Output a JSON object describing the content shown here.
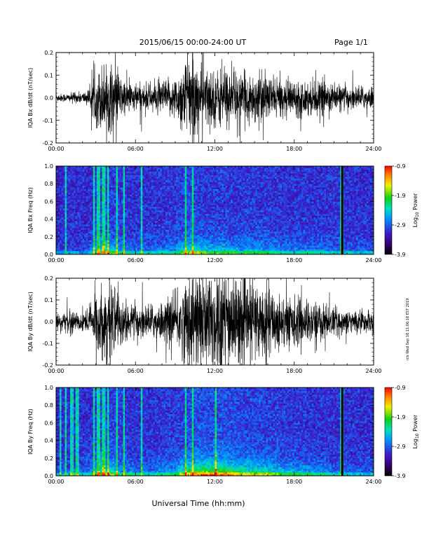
{
  "header": {
    "title": "2015/06/15  00:00-24:00 UT",
    "page": "Page 1/1"
  },
  "side_stamp": "rcb Wed Sep 18 11:06:18 EST 2019",
  "xlabel": "Universal Time (hh:mm)",
  "x_ticks": [
    "00:00",
    "06:00",
    "12:00",
    "18:00",
    "24:00"
  ],
  "colorbar": {
    "label": "Log10 Power",
    "label_main": "Log",
    "label_sub": "10",
    "label_tail": " Power",
    "ticks": [
      "-0.9",
      "-1.9",
      "-2.9",
      "-3.9"
    ]
  },
  "chart_data": [
    {
      "type": "line",
      "ylabel": "IQA Bx dB/dt (nT/sec)",
      "xlim": [
        0,
        24
      ],
      "ylim": [
        -0.2,
        0.2
      ],
      "y_ticks": [
        "0.2",
        "0.1",
        "0.0",
        "-0.1",
        "-0.2"
      ],
      "envelope": {
        "x_hours": [
          0,
          1,
          2,
          2.5,
          3,
          3.5,
          4,
          4.5,
          5,
          6,
          7,
          8,
          9,
          9.5,
          10,
          10.5,
          11,
          12,
          13,
          14,
          15,
          16,
          17,
          18,
          19,
          20,
          21,
          22,
          23,
          24
        ],
        "amplitude": [
          0.015,
          0.015,
          0.02,
          0.03,
          0.09,
          0.12,
          0.13,
          0.1,
          0.07,
          0.05,
          0.05,
          0.06,
          0.07,
          0.12,
          0.15,
          0.14,
          0.11,
          0.1,
          0.1,
          0.08,
          0.09,
          0.08,
          0.06,
          0.06,
          0.06,
          0.06,
          0.05,
          0.04,
          0.04,
          0.04
        ]
      }
    },
    {
      "type": "heatmap",
      "ylabel": "IQA Bx Freq (Hz)",
      "xlim": [
        0,
        24
      ],
      "ylim": [
        0,
        1.0
      ],
      "y_ticks": [
        "1.0",
        "0.8",
        "0.6",
        "0.4",
        "0.2",
        "0.0"
      ],
      "zlim": [
        -3.9,
        -0.9
      ],
      "zlabel": "Log10 Power",
      "bursts_hours": [
        0.7,
        2.9,
        3.2,
        3.6,
        3.9,
        4.6,
        5.1,
        6.5,
        9.8,
        10.3,
        21.6
      ]
    },
    {
      "type": "line",
      "ylabel": "IQA By dB/dt (nT/sec)",
      "xlim": [
        0,
        24
      ],
      "ylim": [
        -0.2,
        0.2
      ],
      "y_ticks": [
        "0.2",
        "0.1",
        "0.0",
        "-0.1",
        "-0.2"
      ],
      "envelope": {
        "x_hours": [
          0,
          1,
          2,
          2.5,
          3,
          3.5,
          4,
          4.5,
          5,
          6,
          7,
          8,
          9,
          9.5,
          10,
          10.5,
          11,
          12,
          13,
          14,
          15,
          16,
          17,
          18,
          19,
          20,
          21,
          22,
          23,
          24
        ],
        "amplitude": [
          0.03,
          0.035,
          0.04,
          0.05,
          0.1,
          0.13,
          0.14,
          0.11,
          0.08,
          0.06,
          0.06,
          0.07,
          0.09,
          0.13,
          0.17,
          0.19,
          0.2,
          0.2,
          0.19,
          0.15,
          0.14,
          0.13,
          0.1,
          0.09,
          0.08,
          0.07,
          0.05,
          0.04,
          0.04,
          0.04
        ]
      }
    },
    {
      "type": "heatmap",
      "ylabel": "IQA By Freq (Hz)",
      "xlim": [
        0,
        24
      ],
      "ylim": [
        0,
        1.0
      ],
      "y_ticks": [
        "1.0",
        "0.8",
        "0.6",
        "0.4",
        "0.2",
        "0.0"
      ],
      "zlim": [
        -3.9,
        -0.9
      ],
      "zlabel": "Log10 Power",
      "bursts_hours": [
        0.3,
        0.7,
        1.2,
        1.6,
        2.9,
        3.2,
        3.6,
        3.9,
        4.6,
        5.1,
        6.5,
        9.8,
        10.3,
        12.1,
        21.6
      ]
    }
  ]
}
